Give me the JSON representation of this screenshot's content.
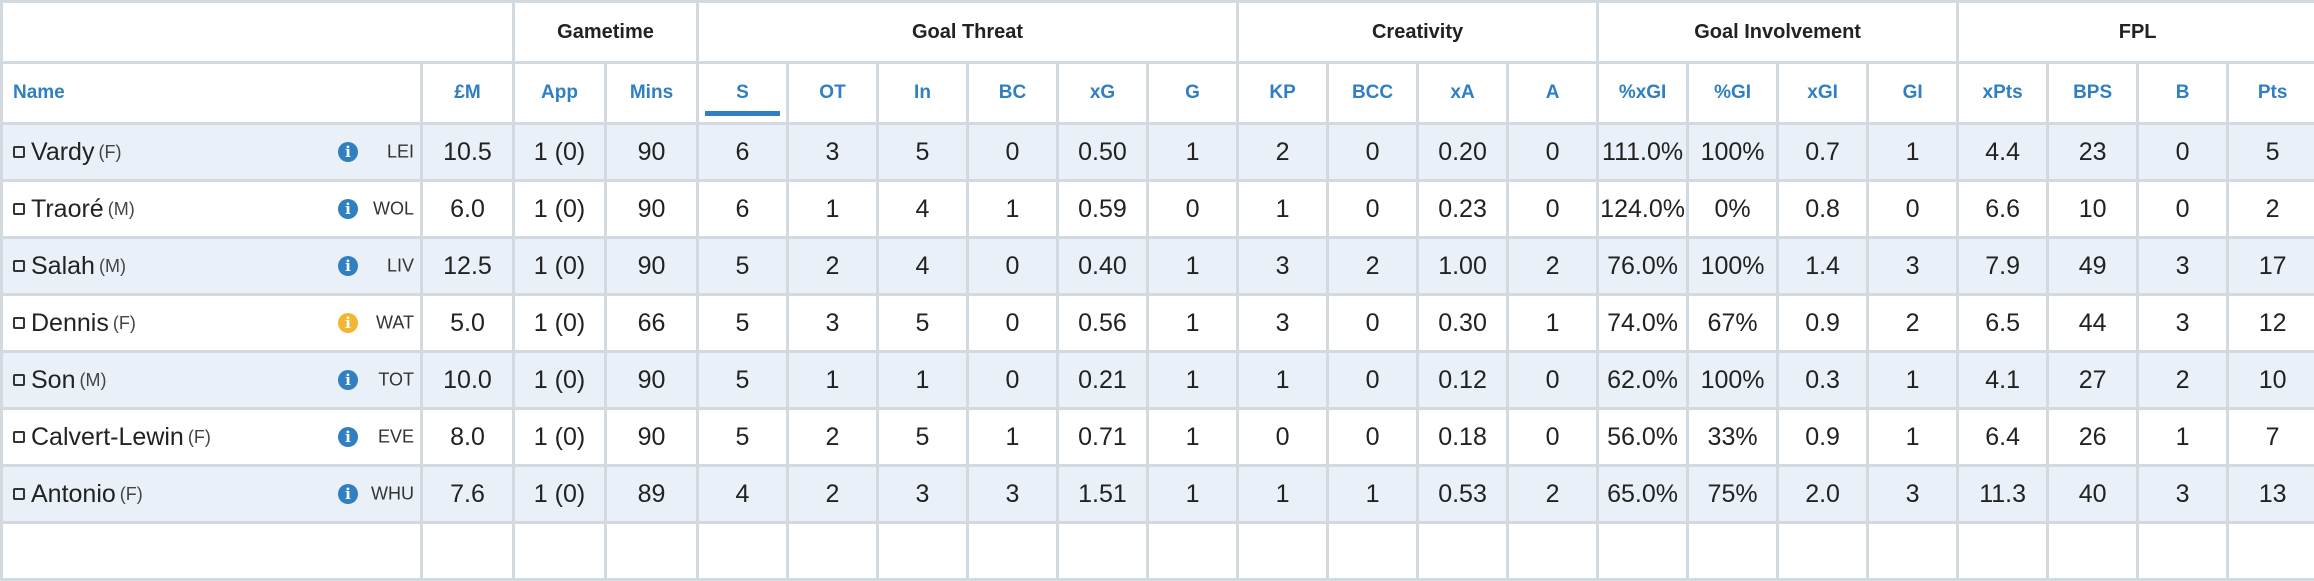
{
  "groups": [
    {
      "label": "",
      "span": 2
    },
    {
      "label": "Gametime",
      "span": 2
    },
    {
      "label": "Goal Threat",
      "span": 6
    },
    {
      "label": "Creativity",
      "span": 4
    },
    {
      "label": "Goal Involvement",
      "span": 4
    },
    {
      "label": "FPL",
      "span": 4
    }
  ],
  "columns": [
    "Name",
    "£M",
    "App",
    "Mins",
    "S",
    "OT",
    "In",
    "BC",
    "xG",
    "G",
    "KP",
    "BCC",
    "xA",
    "A",
    "%xGI",
    "%GI",
    "xGI",
    "GI",
    "xPts",
    "BPS",
    "B",
    "Pts"
  ],
  "sorted_column": "S",
  "colors": {
    "accent": "#2f7fc2",
    "info_icon": "#2f7fc2",
    "warning_icon": "#f2b630",
    "row_alt": "#e9f0f7",
    "border": "#d2d9df"
  },
  "rows": [
    {
      "name": "Vardy",
      "pos": "(F)",
      "team": "LEI",
      "status": "info",
      "values": [
        "10.5",
        "1 (0)",
        "90",
        "6",
        "3",
        "5",
        "0",
        "0.50",
        "1",
        "2",
        "0",
        "0.20",
        "0",
        "111.0%",
        "100%",
        "0.7",
        "1",
        "4.4",
        "23",
        "0",
        "5"
      ]
    },
    {
      "name": "Traoré",
      "pos": "(M)",
      "team": "WOL",
      "status": "info",
      "values": [
        "6.0",
        "1 (0)",
        "90",
        "6",
        "1",
        "4",
        "1",
        "0.59",
        "0",
        "1",
        "0",
        "0.23",
        "0",
        "124.0%",
        "0%",
        "0.8",
        "0",
        "6.6",
        "10",
        "0",
        "2"
      ]
    },
    {
      "name": "Salah",
      "pos": "(M)",
      "team": "LIV",
      "status": "info",
      "values": [
        "12.5",
        "1 (0)",
        "90",
        "5",
        "2",
        "4",
        "0",
        "0.40",
        "1",
        "3",
        "2",
        "1.00",
        "2",
        "76.0%",
        "100%",
        "1.4",
        "3",
        "7.9",
        "49",
        "3",
        "17"
      ]
    },
    {
      "name": "Dennis",
      "pos": "(F)",
      "team": "WAT",
      "status": "warning",
      "values": [
        "5.0",
        "1 (0)",
        "66",
        "5",
        "3",
        "5",
        "0",
        "0.56",
        "1",
        "3",
        "0",
        "0.30",
        "1",
        "74.0%",
        "67%",
        "0.9",
        "2",
        "6.5",
        "44",
        "3",
        "12"
      ]
    },
    {
      "name": "Son",
      "pos": "(M)",
      "team": "TOT",
      "status": "info",
      "values": [
        "10.0",
        "1 (0)",
        "90",
        "5",
        "1",
        "1",
        "0",
        "0.21",
        "1",
        "1",
        "0",
        "0.12",
        "0",
        "62.0%",
        "100%",
        "0.3",
        "1",
        "4.1",
        "27",
        "2",
        "10"
      ]
    },
    {
      "name": "Calvert-Lewin",
      "pos": "(F)",
      "team": "EVE",
      "status": "info",
      "values": [
        "8.0",
        "1 (0)",
        "90",
        "5",
        "2",
        "5",
        "1",
        "0.71",
        "1",
        "0",
        "0",
        "0.18",
        "0",
        "56.0%",
        "33%",
        "0.9",
        "1",
        "6.4",
        "26",
        "1",
        "7"
      ]
    },
    {
      "name": "Antonio",
      "pos": "(F)",
      "team": "WHU",
      "status": "info",
      "values": [
        "7.6",
        "1 (0)",
        "89",
        "4",
        "2",
        "3",
        "3",
        "1.51",
        "1",
        "1",
        "1",
        "0.53",
        "2",
        "65.0%",
        "75%",
        "2.0",
        "3",
        "11.3",
        "40",
        "3",
        "13"
      ]
    },
    {
      "name": "",
      "pos": "",
      "team": "",
      "status": "none",
      "values": [
        "",
        "",
        "",
        "",
        "",
        "",
        "",
        "",
        "",
        "",
        "",
        "",
        "",
        "",
        "",
        "",
        "",
        "",
        "",
        "",
        ""
      ]
    }
  ]
}
